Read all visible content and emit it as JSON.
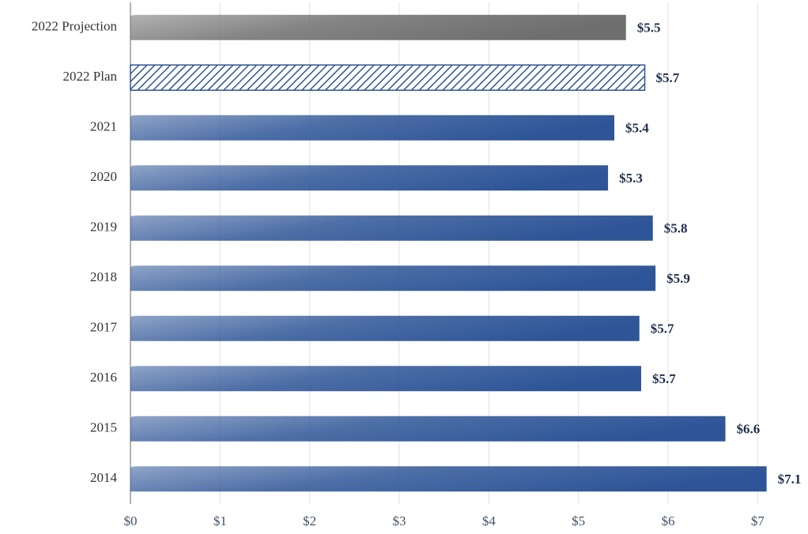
{
  "chart_data": {
    "type": "hbar",
    "categories": [
      "2022 Projection",
      "2022 Plan",
      "2021",
      "2020",
      "2019",
      "2018",
      "2017",
      "2016",
      "2015",
      "2014"
    ],
    "values": [
      5.53,
      5.74,
      5.4,
      5.33,
      5.83,
      5.86,
      5.68,
      5.7,
      6.64,
      7.1
    ],
    "value_labels": [
      "$5.5",
      "$5.7",
      "$5.4",
      "$5.3",
      "$5.8",
      "$5.9",
      "$5.7",
      "$5.7",
      "$6.6",
      "$7.1"
    ],
    "colors": [
      "#6e6e6e",
      "#2e5597",
      "#2e5597",
      "#2e5597",
      "#2e5597",
      "#2e5597",
      "#2e5597",
      "#2e5597",
      "#2e5597",
      "#2e5597"
    ],
    "patterns": [
      "gradient",
      "hatch",
      "gradient",
      "gradient",
      "gradient",
      "gradient",
      "gradient",
      "gradient",
      "gradient",
      "gradient"
    ],
    "xlim": [
      0,
      7.5
    ],
    "xticks": [
      {
        "value": 0,
        "label": "$0"
      },
      {
        "value": 1,
        "label": "$1"
      },
      {
        "value": 2,
        "label": "$2"
      },
      {
        "value": 3,
        "label": "$3"
      },
      {
        "value": 4,
        "label": "$4"
      },
      {
        "value": 5,
        "label": "$5"
      },
      {
        "value": 6,
        "label": "$6"
      },
      {
        "value": 7,
        "label": "$7"
      }
    ],
    "grid": true
  }
}
